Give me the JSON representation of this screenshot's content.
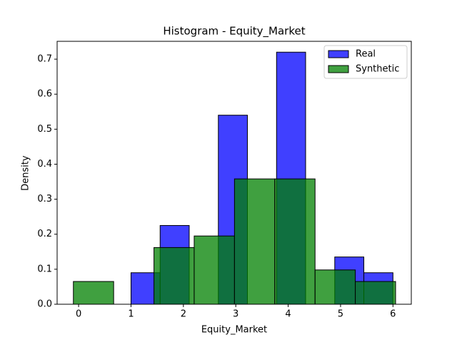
{
  "chart_data": {
    "type": "histogram",
    "title": "Histogram - Equity_Market",
    "x_label": "Equity_Market",
    "y_label": "Density",
    "series": [
      {
        "name": "Real",
        "color": "#0000ff",
        "bins": [
          1,
          1.556,
          2.111,
          2.667,
          3.222,
          3.778,
          4.333,
          4.889,
          5.444,
          6
        ],
        "values": [
          0.09,
          0.225,
          0,
          0.54,
          0,
          0.72,
          0,
          0.135,
          0.09
        ]
      },
      {
        "name": "Synthetic",
        "color": "#008000",
        "bins": [
          -0.1,
          0.669,
          1.438,
          2.206,
          2.975,
          3.744,
          4.513,
          5.281,
          6.05
        ],
        "values": [
          0.065,
          0,
          0.162,
          0.195,
          0.358,
          0.358,
          0.098,
          0.065
        ]
      }
    ],
    "xlim": [
      -0.41,
      6.35
    ],
    "ylim": [
      0,
      0.751
    ],
    "xticks": [
      0,
      1,
      2,
      3,
      4,
      5,
      6
    ],
    "yticks": [
      {
        "value": 0,
        "label": "0.0"
      },
      0.1,
      0.2,
      0.3,
      0.4,
      0.5,
      0.6,
      0.7
    ],
    "legend": "upper right"
  }
}
